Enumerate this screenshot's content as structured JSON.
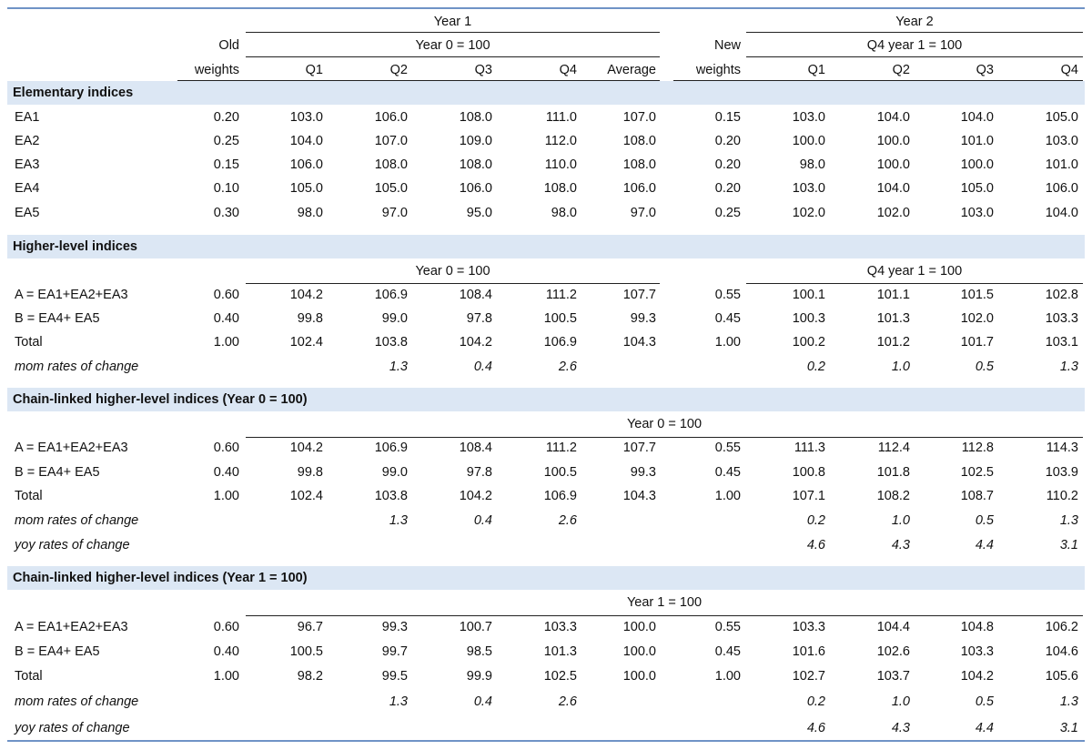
{
  "headers": {
    "year1": "Year 1",
    "year2": "Year 2",
    "old": "Old",
    "weights1": "weights",
    "year0_100": "Year 0 = 100",
    "new": "New",
    "weights2": "weights",
    "q4_year1_100": "Q4 year 1 = 100",
    "q1": "Q1",
    "q2": "Q2",
    "q3": "Q3",
    "q4": "Q4",
    "average": "Average",
    "q1b": "Q1",
    "q2b": "Q2",
    "q3b": "Q3",
    "q4b": "Q4"
  },
  "sections": [
    {
      "title": "Elementary indices",
      "rows": [
        {
          "label": "EA1",
          "w1": "0.20",
          "y1": [
            "103.0",
            "106.0",
            "108.0",
            "111.0",
            "107.0"
          ],
          "w2": "0.15",
          "y2": [
            "103.0",
            "104.0",
            "104.0",
            "105.0"
          ]
        },
        {
          "label": "EA2",
          "w1": "0.25",
          "y1": [
            "104.0",
            "107.0",
            "109.0",
            "112.0",
            "108.0"
          ],
          "w2": "0.20",
          "y2": [
            "100.0",
            "100.0",
            "101.0",
            "103.0"
          ]
        },
        {
          "label": "EA3",
          "w1": "0.15",
          "y1": [
            "106.0",
            "108.0",
            "108.0",
            "110.0",
            "108.0"
          ],
          "w2": "0.20",
          "y2": [
            "98.0",
            "100.0",
            "100.0",
            "101.0"
          ]
        },
        {
          "label": "EA4",
          "w1": "0.10",
          "y1": [
            "105.0",
            "105.0",
            "106.0",
            "108.0",
            "106.0"
          ],
          "w2": "0.20",
          "y2": [
            "103.0",
            "104.0",
            "105.0",
            "106.0"
          ]
        },
        {
          "label": "EA5",
          "w1": "0.30",
          "y1": [
            "98.0",
            "97.0",
            "95.0",
            "98.0",
            "97.0"
          ],
          "w2": "0.25",
          "y2": [
            "102.0",
            "102.0",
            "103.0",
            "104.0"
          ]
        }
      ]
    },
    {
      "title": "Higher-level indices",
      "sub_left": "Year 0 = 100",
      "sub_right": "Q4 year 1 = 100",
      "rows": [
        {
          "label": "A = EA1+EA2+EA3",
          "w1": "0.60",
          "y1": [
            "104.2",
            "106.9",
            "108.4",
            "111.2",
            "107.7"
          ],
          "w2": "0.55",
          "y2": [
            "100.1",
            "101.1",
            "101.5",
            "102.8"
          ]
        },
        {
          "label": "B = EA4+ EA5",
          "w1": "0.40",
          "y1": [
            "99.8",
            "99.0",
            "97.8",
            "100.5",
            "99.3"
          ],
          "w2": "0.45",
          "y2": [
            "100.3",
            "101.3",
            "102.0",
            "103.3"
          ]
        },
        {
          "label": "Total",
          "w1": "1.00",
          "y1": [
            "102.4",
            "103.8",
            "104.2",
            "106.9",
            "104.3"
          ],
          "w2": "1.00",
          "y2": [
            "100.2",
            "101.2",
            "101.7",
            "103.1"
          ]
        },
        {
          "label": "mom rates of change",
          "italic": true,
          "w1": "",
          "y1": [
            "",
            "1.3",
            "0.4",
            "2.6",
            ""
          ],
          "w2": "",
          "y2": [
            "0.2",
            "1.0",
            "0.5",
            "1.3"
          ]
        }
      ]
    },
    {
      "title": "Chain-linked higher-level indices (Year 0 = 100)",
      "sub_center": "Year 0 = 100",
      "rows": [
        {
          "label": "A = EA1+EA2+EA3",
          "w1": "0.60",
          "y1": [
            "104.2",
            "106.9",
            "108.4",
            "111.2",
            "107.7"
          ],
          "w2": "0.55",
          "y2": [
            "111.3",
            "112.4",
            "112.8",
            "114.3"
          ]
        },
        {
          "label": "B = EA4+ EA5",
          "w1": "0.40",
          "y1": [
            "99.8",
            "99.0",
            "97.8",
            "100.5",
            "99.3"
          ],
          "w2": "0.45",
          "y2": [
            "100.8",
            "101.8",
            "102.5",
            "103.9"
          ]
        },
        {
          "label": "Total",
          "w1": "1.00",
          "y1": [
            "102.4",
            "103.8",
            "104.2",
            "106.9",
            "104.3"
          ],
          "w2": "1.00",
          "y2": [
            "107.1",
            "108.2",
            "108.7",
            "110.2"
          ]
        },
        {
          "label": "mom rates of change",
          "italic": true,
          "w1": "",
          "y1": [
            "",
            "1.3",
            "0.4",
            "2.6",
            ""
          ],
          "w2": "",
          "y2": [
            "0.2",
            "1.0",
            "0.5",
            "1.3"
          ]
        },
        {
          "label": "yoy rates of change",
          "italic": true,
          "w1": "",
          "y1": [
            "",
            "",
            "",
            "",
            ""
          ],
          "w2": "",
          "y2": [
            "4.6",
            "4.3",
            "4.4",
            "3.1"
          ]
        }
      ]
    },
    {
      "title": "Chain-linked higher-level indices (Year 1 = 100)",
      "sub_center": "Year 1 = 100",
      "rows": [
        {
          "label": "A = EA1+EA2+EA3",
          "w1": "0.60",
          "y1": [
            "96.7",
            "99.3",
            "100.7",
            "103.3",
            "100.0"
          ],
          "w2": "0.55",
          "y2": [
            "103.3",
            "104.4",
            "104.8",
            "106.2"
          ]
        },
        {
          "label": "B = EA4+ EA5",
          "w1": "0.40",
          "y1": [
            "100.5",
            "99.7",
            "98.5",
            "101.3",
            "100.0"
          ],
          "w2": "0.45",
          "y2": [
            "101.6",
            "102.6",
            "103.3",
            "104.6"
          ]
        },
        {
          "label": "Total",
          "w1": "1.00",
          "y1": [
            "98.2",
            "99.5",
            "99.9",
            "102.5",
            "100.0"
          ],
          "w2": "1.00",
          "y2": [
            "102.7",
            "103.7",
            "104.2",
            "105.6"
          ]
        },
        {
          "label": "mom rates of change",
          "italic": true,
          "w1": "",
          "y1": [
            "",
            "1.3",
            "0.4",
            "2.6",
            ""
          ],
          "w2": "",
          "y2": [
            "0.2",
            "1.0",
            "0.5",
            "1.3"
          ]
        },
        {
          "label": "yoy rates of change",
          "italic": true,
          "w1": "",
          "y1": [
            "",
            "",
            "",
            "",
            ""
          ],
          "w2": "",
          "y2": [
            "4.6",
            "4.3",
            "4.4",
            "3.1"
          ]
        }
      ]
    }
  ]
}
